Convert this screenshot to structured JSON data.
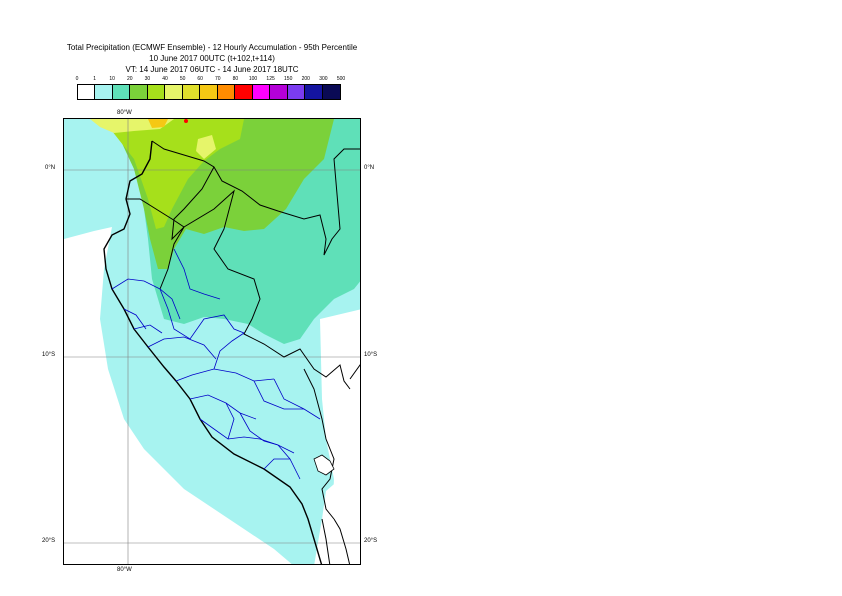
{
  "header": {
    "title": "Total Precipitation (ECMWF Ensemble) - 12 Hourly Accumulation - 95th Percentile",
    "base_time": "10 June 2017 00UTC (t+102,t+114)",
    "valid_time": "VT: 14 June 2017 06UTC - 14 June 2017 18UTC"
  },
  "legend": {
    "ticks": [
      "0",
      "1",
      "10",
      "20",
      "30",
      "40",
      "50",
      "60",
      "70",
      "80",
      "100",
      "125",
      "150",
      "200",
      "300",
      "500"
    ],
    "colors": [
      "#ffffff",
      "#a7f3f0",
      "#5fe0b8",
      "#7bd13a",
      "#a6e01b",
      "#e6f56a",
      "#e0e02c",
      "#f5c814",
      "#ff8c00",
      "#ff0000",
      "#ff00ff",
      "#b400d8",
      "#7b3cf0",
      "#1414a0",
      "#0a0a55"
    ]
  },
  "map": {
    "lon_labels": [
      "80°W",
      "80°W"
    ],
    "lat_labels": [
      "0°N",
      "0°N",
      "10°S",
      "10°S",
      "20°S",
      "20°S"
    ]
  }
}
